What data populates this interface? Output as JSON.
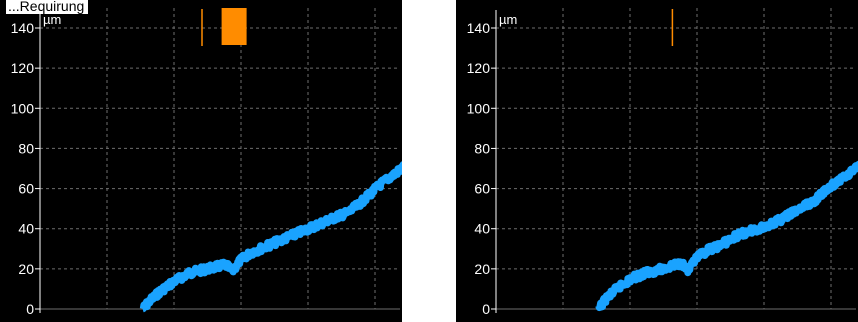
{
  "caption": "...Requirung",
  "colors": {
    "background": "#000000",
    "grid": "#6e6e6e",
    "axis": "#ffffff",
    "trace": "#1aa3ff",
    "marker": "#ff8c00"
  },
  "chart_data": [
    {
      "type": "line",
      "ylabel": "µm",
      "ylim": [
        0,
        150
      ],
      "yticks": [
        0,
        20,
        40,
        60,
        80,
        100,
        120,
        140
      ],
      "grid": true,
      "series": [
        {
          "color": "#1aa3ff",
          "x": [
            0.0,
            0.02,
            0.05,
            0.09,
            0.13,
            0.18,
            0.23,
            0.25,
            0.27,
            0.3,
            0.34,
            0.38,
            0.42,
            0.46,
            0.5,
            0.54,
            0.57,
            0.6,
            0.63,
            0.66,
            0.69,
            0.72,
            0.74,
            0.76
          ],
          "values": [
            0,
            4,
            9,
            14,
            18,
            20,
            22,
            19,
            24,
            28,
            31,
            34,
            37,
            40,
            43,
            46,
            48,
            52,
            57,
            62,
            66,
            70,
            73,
            72
          ]
        }
      ],
      "markers": [
        {
          "type": "line",
          "x": 0.45
        },
        {
          "type": "block",
          "x": 0.51
        }
      ]
    },
    {
      "type": "line",
      "ylabel": "µm",
      "ylim": [
        0,
        150
      ],
      "yticks": [
        0,
        20,
        40,
        60,
        80,
        100,
        120,
        140
      ],
      "grid": true,
      "series": [
        {
          "color": "#1aa3ff",
          "x": [
            0.0,
            0.02,
            0.05,
            0.09,
            0.13,
            0.18,
            0.23,
            0.25,
            0.27,
            0.3,
            0.34,
            0.38,
            0.42,
            0.46,
            0.5,
            0.54,
            0.57,
            0.6,
            0.63,
            0.66,
            0.69,
            0.72,
            0.74,
            0.76
          ],
          "values": [
            0,
            5,
            10,
            15,
            18,
            20,
            23,
            19,
            25,
            29,
            32,
            36,
            39,
            41,
            44,
            48,
            51,
            54,
            59,
            63,
            67,
            71,
            73,
            71
          ]
        }
      ],
      "markers": [
        {
          "type": "line",
          "x": 0.49
        }
      ]
    }
  ]
}
